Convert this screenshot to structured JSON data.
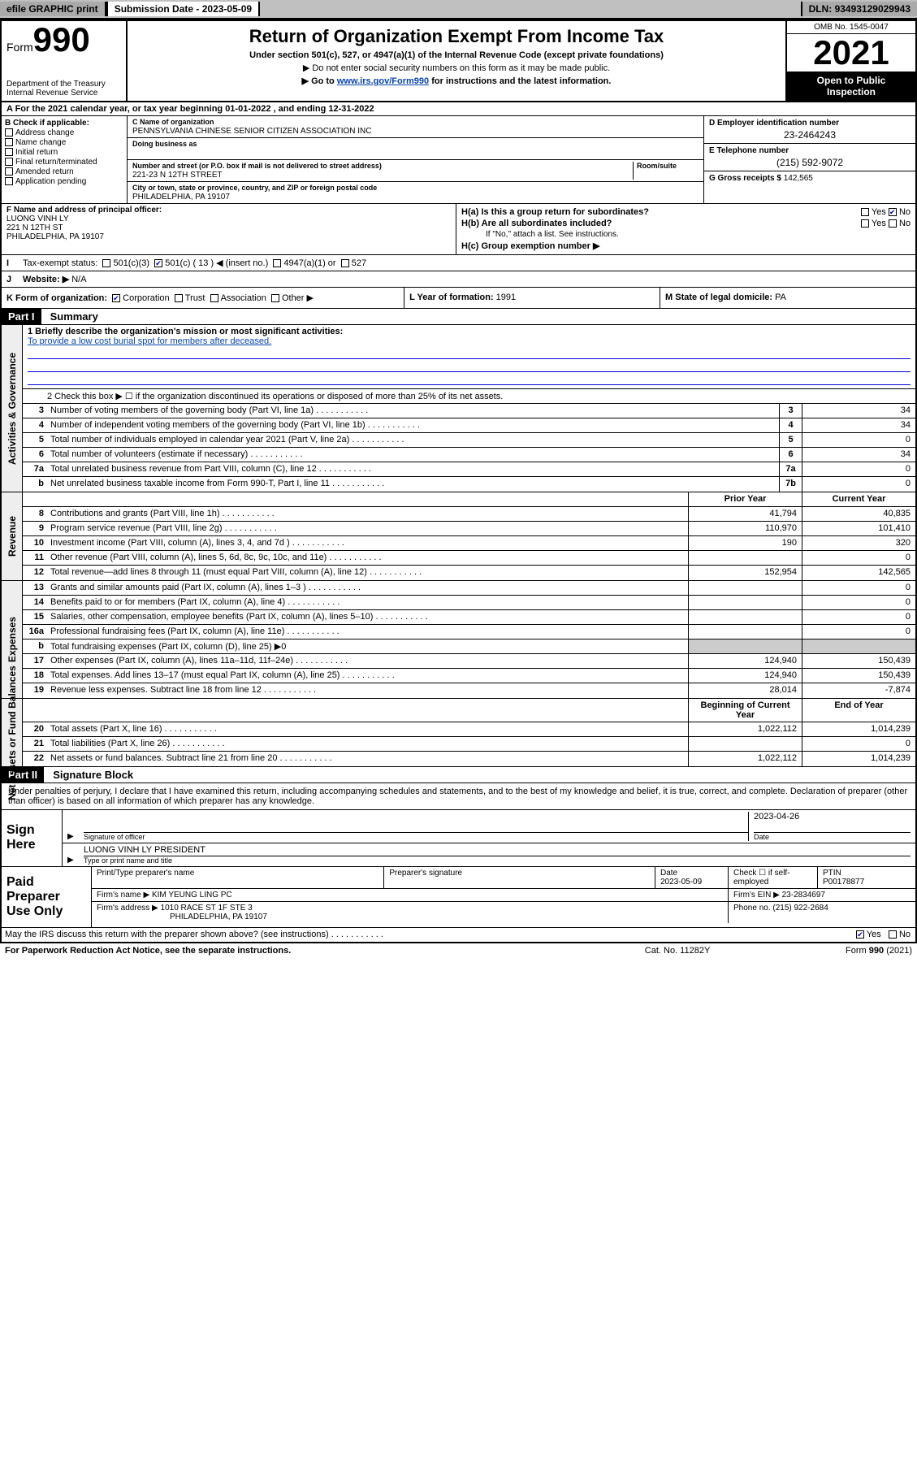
{
  "topbar": {
    "efile": "efile GRAPHIC print",
    "submission_label": "Submission Date - ",
    "submission_date": "2023-05-09",
    "dln_label": "DLN: ",
    "dln": "93493129029943"
  },
  "header": {
    "form_prefix": "Form",
    "form_number": "990",
    "title": "Return of Organization Exempt From Income Tax",
    "sub1": "Under section 501(c), 527, or 4947(a)(1) of the Internal Revenue Code (except private foundations)",
    "sub2": "▶ Do not enter social security numbers on this form as it may be made public.",
    "sub3_pre": "▶ Go to ",
    "sub3_link": "www.irs.gov/Form990",
    "sub3_post": " for instructions and the latest information.",
    "dept1": "Department of the Treasury",
    "dept2": "Internal Revenue Service",
    "omb": "OMB No. 1545-0047",
    "year": "2021",
    "openpub1": "Open to Public",
    "openpub2": "Inspection"
  },
  "row_a": "A For the 2021 calendar year, or tax year beginning 01-01-2022    , and ending 12-31-2022",
  "block_b": {
    "title": "B Check if applicable:",
    "items": [
      "Address change",
      "Name change",
      "Initial return",
      "Final return/terminated",
      "Amended return",
      "Application pending"
    ]
  },
  "block_c": {
    "name_lbl": "C Name of organization",
    "name_val": "PENNSYLVANIA CHINESE SENIOR CITIZEN ASSOCIATION INC",
    "dba_lbl": "Doing business as",
    "dba_val": "",
    "addr_lbl": "Number and street (or P.O. box if mail is not delivered to street address)",
    "room_lbl": "Room/suite",
    "addr_val": "221-23 N 12TH STREET",
    "city_lbl": "City or town, state or province, country, and ZIP or foreign postal code",
    "city_val": "PHILADELPHIA, PA  19107"
  },
  "block_d": {
    "ein_lbl": "D Employer identification number",
    "ein_val": "23-2464243",
    "tel_lbl": "E Telephone number",
    "tel_val": "(215) 592-9072",
    "gross_lbl": "G Gross receipts $ ",
    "gross_val": "142,565"
  },
  "block_f": {
    "lbl": "F Name and address of principal officer:",
    "name": "LUONG VINH LY",
    "addr1": "221 N 12TH ST",
    "addr2": "PHILADELPHIA, PA  19107"
  },
  "block_h": {
    "ha": "H(a)  Is this a group return for subordinates?",
    "ha_yes": "Yes",
    "ha_no": "No",
    "hb": "H(b)  Are all subordinates included?",
    "hb_note": "If \"No,\" attach a list. See instructions.",
    "hc": "H(c)  Group exemption number ▶"
  },
  "tax_status": {
    "lbl": "I",
    "text": "Tax-exempt status:",
    "opt1": "501(c)(3)",
    "opt2": "501(c) ( 13 ) ◀ (insert no.)",
    "opt3": "4947(a)(1) or",
    "opt4": "527"
  },
  "website": {
    "lbl": "J",
    "text": "Website: ▶",
    "val": "N/A"
  },
  "row_k": {
    "k_lbl": "K Form of organization:",
    "k_opts": [
      "Corporation",
      "Trust",
      "Association",
      "Other ▶"
    ],
    "l_lbl": "L Year of formation: ",
    "l_val": "1991",
    "m_lbl": "M State of legal domicile: ",
    "m_val": "PA"
  },
  "part1": {
    "hdr": "Part I",
    "title": "Summary",
    "brief_lbl": "1   Briefly describe the organization's mission or most significant activities:",
    "brief_val": "To provide a low cost burial spot for members after deceased.",
    "line2": "2   Check this box ▶ ☐  if the organization discontinued its operations or disposed of more than 25% of its net assets.",
    "governance_lines": [
      {
        "n": "3",
        "t": "Number of voting members of the governing body (Part VI, line 1a)",
        "b": "3",
        "v": "34"
      },
      {
        "n": "4",
        "t": "Number of independent voting members of the governing body (Part VI, line 1b)",
        "b": "4",
        "v": "34"
      },
      {
        "n": "5",
        "t": "Total number of individuals employed in calendar year 2021 (Part V, line 2a)",
        "b": "5",
        "v": "0"
      },
      {
        "n": "6",
        "t": "Total number of volunteers (estimate if necessary)",
        "b": "6",
        "v": "34"
      },
      {
        "n": "7a",
        "t": "Total unrelated business revenue from Part VIII, column (C), line 12",
        "b": "7a",
        "v": "0"
      },
      {
        "n": "b",
        "t": "Net unrelated business taxable income from Form 990-T, Part I, line 11",
        "b": "7b",
        "v": "0"
      }
    ],
    "col_prior": "Prior Year",
    "col_current": "Current Year",
    "revenue_lines": [
      {
        "n": "8",
        "t": "Contributions and grants (Part VIII, line 1h)",
        "p": "41,794",
        "c": "40,835"
      },
      {
        "n": "9",
        "t": "Program service revenue (Part VIII, line 2g)",
        "p": "110,970",
        "c": "101,410"
      },
      {
        "n": "10",
        "t": "Investment income (Part VIII, column (A), lines 3, 4, and 7d )",
        "p": "190",
        "c": "320"
      },
      {
        "n": "11",
        "t": "Other revenue (Part VIII, column (A), lines 5, 6d, 8c, 9c, 10c, and 11e)",
        "p": "",
        "c": "0"
      },
      {
        "n": "12",
        "t": "Total revenue—add lines 8 through 11 (must equal Part VIII, column (A), line 12)",
        "p": "152,954",
        "c": "142,565"
      }
    ],
    "expense_lines": [
      {
        "n": "13",
        "t": "Grants and similar amounts paid (Part IX, column (A), lines 1–3 )",
        "p": "",
        "c": "0"
      },
      {
        "n": "14",
        "t": "Benefits paid to or for members (Part IX, column (A), line 4)",
        "p": "",
        "c": "0"
      },
      {
        "n": "15",
        "t": "Salaries, other compensation, employee benefits (Part IX, column (A), lines 5–10)",
        "p": "",
        "c": "0"
      },
      {
        "n": "16a",
        "t": "Professional fundraising fees (Part IX, column (A), line 11e)",
        "p": "",
        "c": "0"
      },
      {
        "n": "b",
        "t": "Total fundraising expenses (Part IX, column (D), line 25) ▶0",
        "p": null,
        "c": null
      },
      {
        "n": "17",
        "t": "Other expenses (Part IX, column (A), lines 11a–11d, 11f–24e)",
        "p": "124,940",
        "c": "150,439"
      },
      {
        "n": "18",
        "t": "Total expenses. Add lines 13–17 (must equal Part IX, column (A), line 25)",
        "p": "124,940",
        "c": "150,439"
      },
      {
        "n": "19",
        "t": "Revenue less expenses. Subtract line 18 from line 12",
        "p": "28,014",
        "c": "-7,874"
      }
    ],
    "col_begin": "Beginning of Current Year",
    "col_end": "End of Year",
    "netassets_lines": [
      {
        "n": "20",
        "t": "Total assets (Part X, line 16)",
        "p": "1,022,112",
        "c": "1,014,239"
      },
      {
        "n": "21",
        "t": "Total liabilities (Part X, line 26)",
        "p": "",
        "c": "0"
      },
      {
        "n": "22",
        "t": "Net assets or fund balances. Subtract line 21 from line 20",
        "p": "1,022,112",
        "c": "1,014,239"
      }
    ]
  },
  "part2": {
    "hdr": "Part II",
    "title": "Signature Block",
    "intro": "Under penalties of perjury, I declare that I have examined this return, including accompanying schedules and statements, and to the best of my knowledge and belief, it is true, correct, and complete. Declaration of preparer (other than officer) is based on all information of which preparer has any knowledge.",
    "sign_here": "Sign Here",
    "sig_officer_lbl": "Signature of officer",
    "sig_date_lbl": "Date",
    "sig_date_val": "2023-04-26",
    "sig_name_val": "LUONG VINH LY  PRESIDENT",
    "sig_name_lbl": "Type or print name and title",
    "paid_hdr": "Paid Preparer Use Only",
    "paid_cols": {
      "c1": "Print/Type preparer's name",
      "c2": "Preparer's signature",
      "c3_lbl": "Date",
      "c3_val": "2023-05-09",
      "c4_lbl": "Check ☐ if self-employed",
      "c5_lbl": "PTIN",
      "c5_val": "P00178877"
    },
    "firm_name_lbl": "Firm's name    ▶ ",
    "firm_name_val": "KIM YEUNG LING PC",
    "firm_ein_lbl": "Firm's EIN ▶ ",
    "firm_ein_val": "23-2834697",
    "firm_addr_lbl": "Firm's address ▶ ",
    "firm_addr_val1": "1010 RACE ST 1F STE 3",
    "firm_addr_val2": "PHILADELPHIA, PA  19107",
    "firm_phone_lbl": "Phone no. ",
    "firm_phone_val": "(215) 922-2684",
    "may_irs": "May the IRS discuss this return with the preparer shown above? (see instructions)",
    "may_yes": "Yes",
    "may_no": "No"
  },
  "footer": {
    "left": "For Paperwork Reduction Act Notice, see the separate instructions.",
    "mid": "Cat. No. 11282Y",
    "right": "Form 990 (2021)"
  },
  "vert_labels": {
    "gov": "Activities & Governance",
    "rev": "Revenue",
    "exp": "Expenses",
    "net": "Net Assets or Fund Balances"
  }
}
